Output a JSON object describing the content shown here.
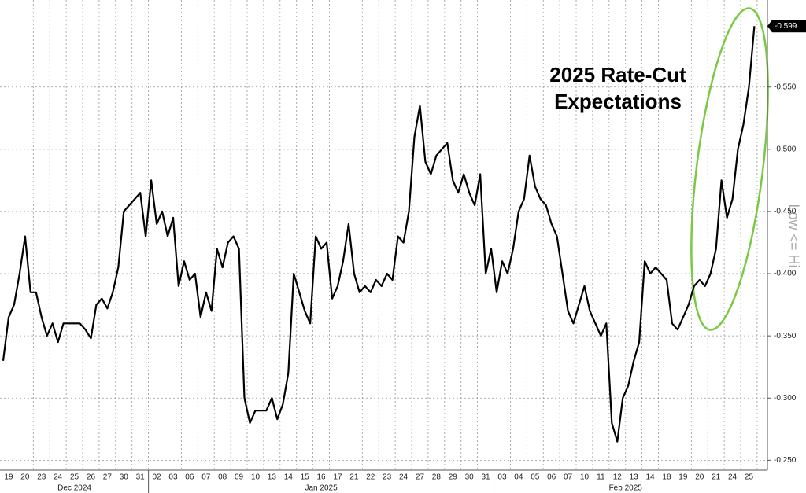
{
  "chart_data": {
    "type": "line",
    "annotation_lines": [
      "2025 Rate-Cut",
      "Expectations"
    ],
    "y_axis_label": "Low <= Hi",
    "categories": [
      null,
      "19",
      null,
      null,
      "20",
      null,
      null,
      "23",
      null,
      null,
      "24",
      null,
      null,
      "25",
      null,
      null,
      "26",
      null,
      null,
      "27",
      null,
      null,
      "30",
      null,
      null,
      "31",
      null,
      null,
      "02",
      null,
      null,
      "03",
      null,
      null,
      "06",
      null,
      null,
      "07",
      null,
      null,
      "08",
      null,
      null,
      "09",
      null,
      null,
      "10",
      null,
      null,
      "13",
      null,
      null,
      "14",
      null,
      null,
      "15",
      null,
      null,
      "16",
      null,
      null,
      "17",
      null,
      null,
      "21",
      null,
      null,
      "22",
      null,
      null,
      "23",
      null,
      null,
      "24",
      null,
      null,
      "27",
      null,
      null,
      "28",
      null,
      null,
      "29",
      null,
      null,
      "30",
      null,
      null,
      "31",
      null,
      null,
      "03",
      null,
      null,
      "04",
      null,
      null,
      "05",
      null,
      null,
      "06",
      null,
      null,
      "07",
      null,
      null,
      "10",
      null,
      null,
      "11",
      null,
      null,
      "12",
      null,
      null,
      "13",
      null,
      null,
      "14",
      null,
      null,
      "18",
      null,
      null,
      "19",
      null,
      null,
      "20",
      null,
      null,
      "21",
      null,
      null,
      "24",
      null,
      null,
      "25",
      null
    ],
    "months": [
      "Dec 2024",
      "Jan 2025",
      "Feb 2025"
    ],
    "series": [
      {
        "color": "#000000",
        "values": [
          -0.33,
          -0.365,
          -0.375,
          -0.4,
          -0.43,
          -0.385,
          -0.385,
          -0.365,
          -0.35,
          -0.36,
          -0.345,
          -0.36,
          -0.36,
          -0.36,
          -0.36,
          -0.355,
          -0.348,
          -0.375,
          -0.38,
          -0.372,
          -0.385,
          -0.405,
          -0.45,
          -0.455,
          -0.46,
          -0.465,
          -0.43,
          -0.475,
          -0.44,
          -0.45,
          -0.43,
          -0.445,
          -0.39,
          -0.41,
          -0.395,
          -0.4,
          -0.365,
          -0.385,
          -0.37,
          -0.42,
          -0.405,
          -0.425,
          -0.43,
          -0.42,
          -0.3,
          -0.28,
          -0.29,
          -0.29,
          -0.29,
          -0.3,
          -0.283,
          -0.295,
          -0.32,
          -0.4,
          -0.385,
          -0.37,
          -0.36,
          -0.43,
          -0.42,
          -0.425,
          -0.38,
          -0.39,
          -0.41,
          -0.44,
          -0.4,
          -0.385,
          -0.39,
          -0.385,
          -0.395,
          -0.39,
          -0.4,
          -0.395,
          -0.43,
          -0.425,
          -0.45,
          -0.51,
          -0.535,
          -0.49,
          -0.48,
          -0.495,
          -0.5,
          -0.505,
          -0.475,
          -0.465,
          -0.48,
          -0.465,
          -0.455,
          -0.48,
          -0.4,
          -0.42,
          -0.385,
          -0.41,
          -0.4,
          -0.42,
          -0.45,
          -0.46,
          -0.495,
          -0.47,
          -0.46,
          -0.455,
          -0.44,
          -0.43,
          -0.4,
          -0.37,
          -0.36,
          -0.375,
          -0.39,
          -0.37,
          -0.36,
          -0.35,
          -0.36,
          -0.28,
          -0.265,
          -0.3,
          -0.31,
          -0.33,
          -0.345,
          -0.41,
          -0.4,
          -0.405,
          -0.4,
          -0.395,
          -0.36,
          -0.355,
          -0.365,
          -0.375,
          -0.39,
          -0.395,
          -0.39,
          -0.4,
          -0.42,
          -0.475,
          -0.445,
          -0.46,
          -0.5,
          -0.52,
          -0.55,
          -0.599
        ]
      }
    ],
    "last_value_label": "-0.599",
    "ylim": [
      -0.242,
      -0.62
    ],
    "yticks": [
      {
        "value": -0.25,
        "label": "-0.250"
      },
      {
        "value": -0.3,
        "label": "-0.300"
      },
      {
        "value": -0.35,
        "label": "-0.350"
      },
      {
        "value": -0.4,
        "label": "-0.400"
      },
      {
        "value": -0.45,
        "label": "-0.450"
      },
      {
        "value": -0.5,
        "label": "-0.500"
      },
      {
        "value": -0.55,
        "label": "-0.550"
      }
    ],
    "grid": true
  }
}
